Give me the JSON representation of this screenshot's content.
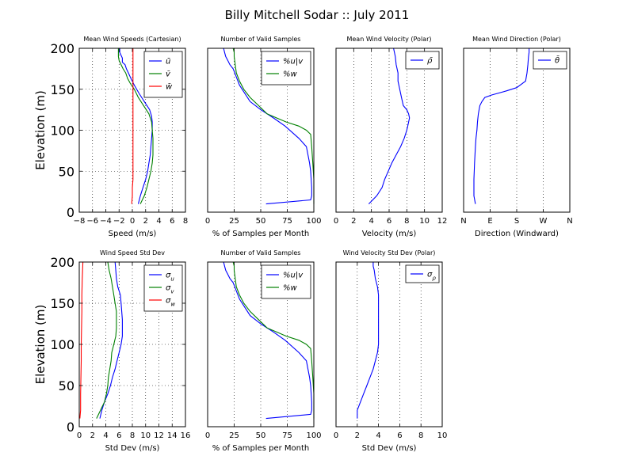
{
  "figure": {
    "title": "Billy Mitchell Sodar :: July 2011"
  },
  "chart_data": [
    {
      "type": "line",
      "title": "Mean Wind Speeds (Cartesian)",
      "xlabel": "Speed (m/s)",
      "ylabel": "Elevation (m)",
      "xlim": [
        -8,
        8
      ],
      "ylim": [
        0,
        200
      ],
      "xticks": [
        -8,
        -6,
        -4,
        -2,
        0,
        2,
        4,
        6,
        8
      ],
      "xtick_labels": [
        "−8",
        "−6",
        "−4",
        "−2",
        "0",
        "2",
        "4",
        "6",
        "8"
      ],
      "yticks": [
        0,
        50,
        100,
        150,
        200
      ],
      "grid": true,
      "legend_position": "top-right",
      "series": [
        {
          "name": "ū",
          "color": "#0000ff",
          "x": [
            0.9,
            1.2,
            1.6,
            2.0,
            2.3,
            2.5,
            2.7,
            2.8,
            2.9,
            3.0,
            3.0,
            2.9,
            2.6,
            1.8,
            1.0,
            0.3,
            -0.2,
            -0.6,
            -0.9,
            -1.1,
            -1.5,
            -1.5,
            -1.9,
            -1.9
          ],
          "y": [
            10,
            20,
            30,
            40,
            50,
            60,
            70,
            80,
            90,
            100,
            110,
            117,
            125,
            135,
            145,
            155,
            163,
            170,
            175,
            180,
            183,
            188,
            195,
            200
          ]
        },
        {
          "name": "v̄",
          "color": "#008000",
          "x": [
            1.2,
            1.8,
            2.2,
            2.5,
            2.8,
            3.0,
            3.1,
            3.1,
            3.1,
            3.0,
            2.9,
            2.5,
            1.7,
            0.9,
            0.3,
            -0.3,
            -0.7,
            -1.0,
            -1.4,
            -1.7,
            -2.0,
            -2.1,
            -2.1
          ],
          "y": [
            10,
            20,
            30,
            40,
            50,
            60,
            70,
            80,
            90,
            100,
            110,
            120,
            130,
            140,
            150,
            157,
            163,
            170,
            175,
            180,
            185,
            190,
            200
          ]
        },
        {
          "name": "w̄",
          "color": "#ff0000",
          "x": [
            -0.1,
            0.0,
            0.0,
            0.1,
            0.1,
            0.1,
            0.1,
            0.1,
            0.1,
            0.1,
            0.1,
            0.1,
            0.1,
            0.1,
            0.1,
            0.1,
            0.1,
            0.1,
            0.1,
            0.1,
            0.1
          ],
          "y": [
            10,
            20,
            30,
            40,
            50,
            60,
            70,
            80,
            90,
            100,
            110,
            120,
            130,
            140,
            150,
            160,
            170,
            180,
            190,
            195,
            200
          ]
        }
      ]
    },
    {
      "type": "line",
      "title": "Number of Valid Samples",
      "xlabel": "% of Samples per Month",
      "xlim": [
        0,
        100
      ],
      "ylim": [
        0,
        200
      ],
      "xticks": [
        0,
        25,
        50,
        75,
        100
      ],
      "xtick_labels": [
        "0",
        "25",
        "50",
        "75",
        "100"
      ],
      "grid": true,
      "legend_position": "top-right",
      "series": [
        {
          "name": "%u|v",
          "color": "#0000ff",
          "x": [
            55,
            97,
            98,
            98,
            97,
            96,
            93,
            86,
            73,
            62,
            50,
            40,
            35,
            30,
            27,
            24,
            21,
            19,
            17,
            16,
            15
          ],
          "y": [
            10,
            15,
            20,
            30,
            50,
            60,
            80,
            90,
            105,
            115,
            125,
            135,
            145,
            155,
            165,
            175,
            180,
            185,
            190,
            195,
            200
          ]
        },
        {
          "name": "%w",
          "color": "#008000",
          "x": [
            100,
            100,
            100,
            99,
            98,
            97,
            93,
            86,
            74,
            65,
            56,
            48,
            40,
            34,
            30,
            27,
            26,
            25,
            25,
            24
          ],
          "y": [
            10,
            20,
            40,
            60,
            80,
            95,
            100,
            105,
            110,
            115,
            120,
            130,
            140,
            150,
            160,
            170,
            180,
            190,
            195,
            200
          ]
        }
      ]
    },
    {
      "type": "line",
      "title": "Mean Wind Velocity (Polar)",
      "xlabel": "Velocity (m/s)",
      "xlim": [
        0,
        12
      ],
      "ylim": [
        0,
        200
      ],
      "xticks": [
        0,
        2,
        4,
        6,
        8,
        10,
        12
      ],
      "xtick_labels": [
        "0",
        "2",
        "4",
        "6",
        "8",
        "10",
        "12"
      ],
      "grid": true,
      "legend_position": "top-right",
      "series": [
        {
          "name": "ρ̄",
          "color": "#0000ff",
          "x": [
            3.7,
            4.6,
            5.2,
            5.5,
            5.9,
            6.3,
            6.8,
            7.3,
            7.7,
            8.0,
            8.1,
            8.2,
            8.3,
            8.2,
            8.0,
            7.6,
            7.4,
            7.2,
            7.0,
            7.0,
            6.8,
            6.7,
            6.5
          ],
          "y": [
            10,
            20,
            30,
            40,
            50,
            60,
            70,
            80,
            90,
            100,
            105,
            110,
            115,
            120,
            125,
            130,
            140,
            150,
            160,
            170,
            180,
            190,
            200
          ]
        }
      ]
    },
    {
      "type": "line",
      "title": "Mean Wind Direction (Polar)",
      "xlabel": "Direction (Windward)",
      "xlim": [
        0,
        360
      ],
      "ylim": [
        0,
        200
      ],
      "xticks": [
        0,
        90,
        180,
        270,
        360
      ],
      "xtick_labels": [
        "N",
        "E",
        "S",
        "W",
        "N"
      ],
      "grid": true,
      "legend_position": "top-right",
      "series": [
        {
          "name": "θ̄",
          "color": "#0000ff",
          "x": [
            40,
            35,
            35,
            37,
            40,
            42,
            45,
            47,
            50,
            55,
            62,
            72,
            95,
            145,
            180,
            210,
            215,
            218,
            220,
            222,
            222
          ],
          "y": [
            10,
            20,
            40,
            60,
            80,
            90,
            100,
            110,
            120,
            130,
            135,
            140,
            143,
            148,
            152,
            160,
            170,
            180,
            190,
            195,
            200
          ]
        }
      ]
    },
    {
      "type": "line",
      "title": "Wind Speed Std Dev",
      "xlabel": "Std Dev (m/s)",
      "ylabel": "Elevation (m)",
      "xlim": [
        0,
        16
      ],
      "ylim": [
        0,
        200
      ],
      "xticks": [
        0,
        2,
        4,
        6,
        8,
        10,
        12,
        14,
        16
      ],
      "xtick_labels": [
        "0",
        "2",
        "4",
        "6",
        "8",
        "10",
        "12",
        "14",
        "16"
      ],
      "yticks": [
        0,
        50,
        100,
        150,
        200
      ],
      "grid": true,
      "legend_position": "top-right",
      "series": [
        {
          "name": "σu",
          "color": "#0000ff",
          "x": [
            3.1,
            3.4,
            3.8,
            4.3,
            4.7,
            5.0,
            5.4,
            5.7,
            6.0,
            6.3,
            6.5,
            6.5,
            6.5,
            6.3,
            6.2,
            5.8,
            5.6,
            5.5,
            5.4
          ],
          "y": [
            10,
            20,
            30,
            40,
            50,
            60,
            70,
            80,
            90,
            100,
            110,
            120,
            130,
            150,
            160,
            170,
            180,
            190,
            200
          ]
        },
        {
          "name": "σv",
          "color": "#008000",
          "x": [
            2.6,
            3.2,
            3.8,
            4.1,
            4.3,
            4.4,
            4.6,
            4.8,
            4.9,
            5.2,
            5.5,
            5.6,
            5.6,
            5.4,
            5.2,
            5.0,
            4.8,
            4.5,
            4.3
          ],
          "y": [
            10,
            20,
            30,
            40,
            50,
            60,
            70,
            80,
            90,
            100,
            110,
            120,
            140,
            150,
            160,
            170,
            180,
            190,
            200
          ]
        },
        {
          "name": "σw",
          "color": "#ff0000",
          "x": [
            0.1,
            0.2,
            0.2,
            0.25,
            0.3,
            0.3,
            0.35,
            0.4,
            0.4,
            0.45,
            0.5,
            0.55
          ],
          "y": [
            10,
            20,
            40,
            60,
            80,
            100,
            120,
            140,
            160,
            180,
            190,
            200
          ]
        }
      ]
    },
    {
      "type": "line",
      "title": "Number of Valid Samples",
      "xlabel": "% of Samples per Month",
      "xlim": [
        0,
        100
      ],
      "ylim": [
        0,
        200
      ],
      "xticks": [
        0,
        25,
        50,
        75,
        100
      ],
      "xtick_labels": [
        "0",
        "25",
        "50",
        "75",
        "100"
      ],
      "grid": true,
      "legend_position": "top-right",
      "series": [
        {
          "name": "%u|v",
          "color": "#0000ff",
          "x": [
            55,
            97,
            98,
            98,
            97,
            96,
            93,
            86,
            73,
            62,
            50,
            40,
            35,
            30,
            27,
            24,
            21,
            19,
            17,
            16,
            15
          ],
          "y": [
            10,
            15,
            20,
            30,
            50,
            60,
            80,
            90,
            105,
            115,
            125,
            135,
            145,
            155,
            165,
            175,
            180,
            185,
            190,
            195,
            200
          ]
        },
        {
          "name": "%w",
          "color": "#008000",
          "x": [
            100,
            100,
            100,
            99,
            98,
            97,
            93,
            86,
            74,
            65,
            56,
            48,
            40,
            34,
            30,
            27,
            26,
            25,
            25,
            24
          ],
          "y": [
            10,
            20,
            40,
            60,
            80,
            95,
            100,
            105,
            110,
            115,
            120,
            130,
            140,
            150,
            160,
            170,
            180,
            190,
            195,
            200
          ]
        }
      ]
    },
    {
      "type": "line",
      "title": "Wind Velocity Std Dev (Polar)",
      "xlabel": "Std Dev (m/s)",
      "xlim": [
        0,
        10
      ],
      "ylim": [
        0,
        200
      ],
      "xticks": [
        0,
        2,
        4,
        6,
        8,
        10
      ],
      "xtick_labels": [
        "0",
        "2",
        "4",
        "6",
        "8",
        "10"
      ],
      "grid": true,
      "legend_position": "top-right",
      "series": [
        {
          "name": "σρ",
          "color": "#0000ff",
          "x": [
            2.0,
            2.0,
            2.3,
            2.6,
            2.9,
            3.2,
            3.5,
            3.7,
            3.9,
            4.0,
            4.0,
            4.0,
            4.0,
            3.9,
            3.7,
            3.6,
            3.5,
            3.5
          ],
          "y": [
            10,
            20,
            30,
            40,
            50,
            60,
            70,
            80,
            90,
            100,
            120,
            140,
            160,
            170,
            180,
            190,
            195,
            200
          ]
        }
      ]
    }
  ]
}
